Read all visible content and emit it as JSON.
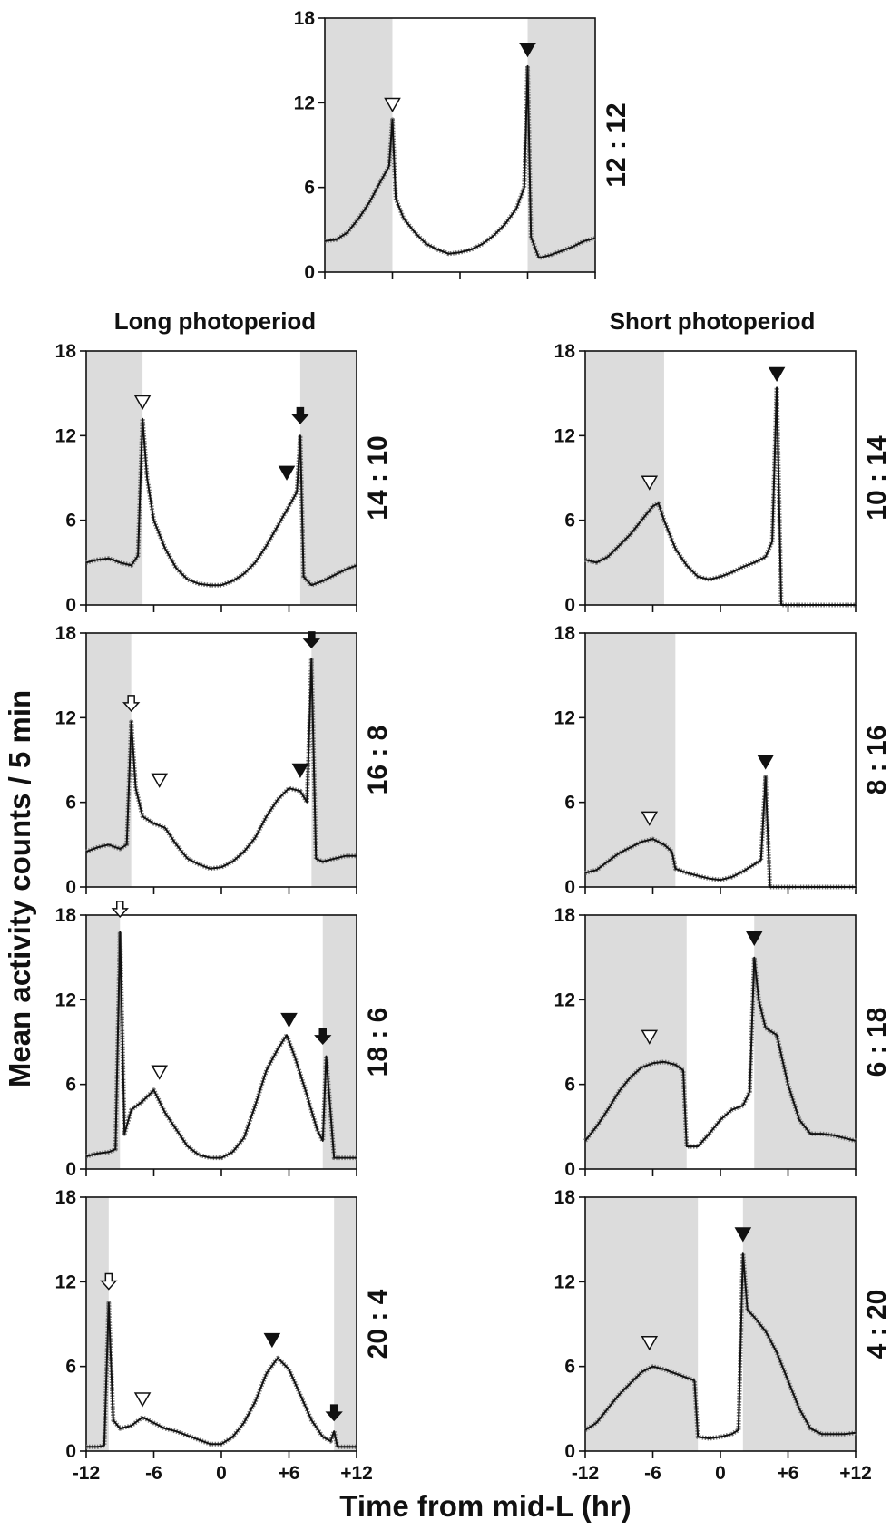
{
  "figure": {
    "long_header": "Long photoperiod",
    "short_header": "Short photoperiod",
    "ylabel": "Mean activity counts / 5 min",
    "xlabel": "Time from mid-L (hr)",
    "x_tick_labels": [
      "-12",
      "-6",
      "0",
      "+6",
      "+12"
    ],
    "y_tick_labels": [
      "0",
      "6",
      "12",
      "18"
    ]
  },
  "colors": {
    "dark_shading": "#dcdcdc",
    "trace": "#111111",
    "marker": "#111111"
  },
  "chart_data": [
    {
      "type": "line",
      "ratio_label": "12 : 12",
      "column": "center",
      "xlim": [
        -12,
        12
      ],
      "ylim": [
        0,
        18
      ],
      "x_ticks_labeled": false,
      "dark_intervals": [
        [
          -12,
          -6
        ],
        [
          6,
          12
        ]
      ],
      "series": [
        {
          "x": [
            -12,
            -11,
            -10,
            -9,
            -8,
            -7,
            -6.3,
            -6,
            -5.7,
            -5,
            -4,
            -3,
            -2,
            -1,
            0,
            1,
            2,
            3,
            4,
            5,
            5.7,
            6,
            6.3,
            7,
            8,
            9,
            10,
            11,
            12
          ],
          "values": [
            2.2,
            2.3,
            2.8,
            3.8,
            5,
            6.5,
            7.5,
            10.8,
            5.2,
            3.8,
            2.8,
            2,
            1.6,
            1.3,
            1.4,
            1.6,
            2,
            2.6,
            3.4,
            4.5,
            6,
            14.6,
            2.5,
            1,
            1.2,
            1.5,
            1.8,
            2.2,
            2.4
          ]
        }
      ],
      "markers": [
        {
          "type": "open-triangle",
          "x": -6,
          "y": 11.8
        },
        {
          "type": "filled-triangle",
          "x": 6,
          "y": 15.7
        }
      ]
    },
    {
      "type": "line",
      "ratio_label": "14 : 10",
      "column": "long",
      "xlim": [
        -12,
        12
      ],
      "ylim": [
        0,
        18
      ],
      "x_ticks_labeled": false,
      "dark_intervals": [
        [
          -12,
          -7
        ],
        [
          7,
          12
        ]
      ],
      "series": [
        {
          "x": [
            -12,
            -11,
            -10,
            -9,
            -8,
            -7.4,
            -7,
            -6.6,
            -6,
            -5,
            -4,
            -3,
            -2,
            -1,
            0,
            1,
            2,
            3,
            4,
            5,
            6,
            6.7,
            7,
            7.3,
            8,
            9,
            10,
            11,
            12
          ],
          "values": [
            3,
            3.2,
            3.3,
            3,
            2.8,
            3.5,
            13.2,
            9,
            6,
            4,
            2.6,
            1.8,
            1.5,
            1.4,
            1.4,
            1.7,
            2.2,
            3,
            4.2,
            5.6,
            7,
            8,
            12,
            2,
            1.4,
            1.7,
            2.1,
            2.5,
            2.8
          ]
        }
      ],
      "markers": [
        {
          "type": "open-triangle",
          "x": -7,
          "y": 14.3
        },
        {
          "type": "filled-triangle",
          "x": 5.8,
          "y": 9.3
        },
        {
          "type": "filled-arrow",
          "x": 7,
          "y": 13.2
        }
      ]
    },
    {
      "type": "line",
      "ratio_label": "16 : 8",
      "column": "long",
      "xlim": [
        -12,
        12
      ],
      "ylim": [
        0,
        18
      ],
      "x_ticks_labeled": false,
      "dark_intervals": [
        [
          -12,
          -8
        ],
        [
          8,
          12
        ]
      ],
      "series": [
        {
          "x": [
            -12,
            -11,
            -10,
            -9,
            -8.4,
            -8,
            -7.6,
            -7,
            -6,
            -5,
            -4,
            -3,
            -2,
            -1,
            0,
            1,
            2,
            3,
            4,
            5,
            6,
            7,
            7.6,
            8,
            8.4,
            9,
            10,
            11,
            12
          ],
          "values": [
            2.5,
            2.8,
            3,
            2.7,
            3,
            11.7,
            7,
            5,
            4.5,
            4.2,
            3,
            2,
            1.6,
            1.3,
            1.4,
            1.8,
            2.5,
            3.5,
            5,
            6.2,
            7,
            6.8,
            6,
            16.2,
            2,
            1.8,
            2,
            2.2,
            2.2
          ]
        }
      ],
      "markers": [
        {
          "type": "open-arrow",
          "x": -8,
          "y": 12.8
        },
        {
          "type": "open-triangle",
          "x": -5.5,
          "y": 7.5
        },
        {
          "type": "filled-triangle",
          "x": 7,
          "y": 8.2
        },
        {
          "type": "filled-arrow",
          "x": 8,
          "y": 17.3
        }
      ]
    },
    {
      "type": "line",
      "ratio_label": "18 : 6",
      "column": "long",
      "xlim": [
        -12,
        12
      ],
      "ylim": [
        0,
        18
      ],
      "x_ticks_labeled": false,
      "dark_intervals": [
        [
          -12,
          -9
        ],
        [
          9,
          12
        ]
      ],
      "series": [
        {
          "x": [
            -12,
            -11,
            -10,
            -9.4,
            -9,
            -8.6,
            -8,
            -7,
            -6,
            -5,
            -4,
            -3,
            -2,
            -1,
            0,
            1,
            2,
            3,
            4,
            5,
            5.8,
            6.5,
            7.5,
            8.5,
            9,
            9.3,
            10,
            11,
            12
          ],
          "values": [
            0.9,
            1.1,
            1.2,
            1.4,
            16.8,
            2.5,
            4.2,
            4.8,
            5.6,
            4,
            2.8,
            1.6,
            1,
            0.8,
            0.8,
            1.2,
            2.2,
            4.5,
            7,
            8.5,
            9.5,
            8,
            5.5,
            2.8,
            2,
            8,
            0.8,
            0.8,
            0.8
          ]
        }
      ],
      "markers": [
        {
          "type": "open-arrow",
          "x": -9,
          "y": 18.2
        },
        {
          "type": "open-triangle",
          "x": -5.5,
          "y": 6.8
        },
        {
          "type": "filled-triangle",
          "x": 6,
          "y": 10.5
        },
        {
          "type": "filled-arrow",
          "x": 9,
          "y": 9.2
        }
      ]
    },
    {
      "type": "line",
      "ratio_label": "20 : 4",
      "column": "long",
      "xlim": [
        -12,
        12
      ],
      "ylim": [
        0,
        18
      ],
      "x_ticks_labeled": true,
      "dark_intervals": [
        [
          -12,
          -10
        ],
        [
          10,
          12
        ]
      ],
      "series": [
        {
          "x": [
            -12,
            -11,
            -10.4,
            -10,
            -9.6,
            -9,
            -8,
            -7,
            -6,
            -5,
            -4,
            -3,
            -2,
            -1,
            0,
            1,
            2,
            3,
            4,
            5,
            6,
            7,
            8,
            9,
            9.7,
            10,
            10.3,
            11,
            12
          ],
          "values": [
            0.3,
            0.3,
            0.4,
            10.5,
            2.2,
            1.6,
            1.8,
            2.4,
            2,
            1.6,
            1.4,
            1.1,
            0.8,
            0.5,
            0.5,
            1,
            2,
            3.5,
            5.5,
            6.6,
            5.8,
            4,
            2.2,
            1,
            0.7,
            1.4,
            0.3,
            0.3,
            0.3
          ]
        }
      ],
      "markers": [
        {
          "type": "open-arrow",
          "x": -10,
          "y": 11.8
        },
        {
          "type": "open-triangle",
          "x": -7,
          "y": 3.6
        },
        {
          "type": "filled-triangle",
          "x": 4.5,
          "y": 7.8
        },
        {
          "type": "filled-arrow",
          "x": 10,
          "y": 2.5
        }
      ]
    },
    {
      "type": "line",
      "ratio_label": "10 : 14",
      "column": "short",
      "xlim": [
        -12,
        12
      ],
      "ylim": [
        0,
        18
      ],
      "x_ticks_labeled": false,
      "dark_intervals": [
        [
          -12,
          -5
        ]
      ],
      "series": [
        {
          "x": [
            -12,
            -11,
            -10,
            -9,
            -8,
            -7,
            -6,
            -5.5,
            -5,
            -4,
            -3,
            -2,
            -1,
            0,
            1,
            2,
            3,
            4,
            4.6,
            5,
            5.4,
            6,
            7,
            8,
            9,
            10,
            11,
            12
          ],
          "values": [
            3.2,
            3,
            3.4,
            4.2,
            5,
            6,
            7,
            7.2,
            6,
            4,
            2.8,
            2,
            1.8,
            2,
            2.3,
            2.7,
            3,
            3.4,
            4.5,
            15.4,
            0,
            0,
            0,
            0,
            0,
            0,
            0,
            0
          ]
        }
      ],
      "markers": [
        {
          "type": "open-triangle",
          "x": -6.3,
          "y": 8.6
        },
        {
          "type": "filled-triangle",
          "x": 5,
          "y": 16.3
        }
      ]
    },
    {
      "type": "line",
      "ratio_label": "8 : 16",
      "column": "short",
      "xlim": [
        -12,
        12
      ],
      "ylim": [
        0,
        18
      ],
      "x_ticks_labeled": false,
      "dark_intervals": [
        [
          -12,
          -4
        ]
      ],
      "series": [
        {
          "x": [
            -12,
            -11,
            -10,
            -9,
            -8,
            -7,
            -6,
            -5,
            -4.3,
            -4,
            -3,
            -2,
            -1,
            0,
            1,
            2,
            3,
            3.6,
            4,
            4.4,
            5,
            6,
            7,
            8,
            9,
            10,
            11,
            12
          ],
          "values": [
            1,
            1.2,
            1.8,
            2.4,
            2.8,
            3.2,
            3.4,
            3,
            2.5,
            1.3,
            1,
            0.8,
            0.6,
            0.5,
            0.7,
            1.1,
            1.6,
            1.9,
            7.8,
            0,
            0,
            0,
            0,
            0,
            0,
            0,
            0,
            0
          ]
        }
      ],
      "markers": [
        {
          "type": "open-triangle",
          "x": -6.3,
          "y": 4.8
        },
        {
          "type": "filled-triangle",
          "x": 4,
          "y": 8.8
        }
      ]
    },
    {
      "type": "line",
      "ratio_label": "6 : 18",
      "column": "short",
      "xlim": [
        -12,
        12
      ],
      "ylim": [
        0,
        18
      ],
      "x_ticks_labeled": false,
      "dark_intervals": [
        [
          -12,
          -3
        ],
        [
          3,
          12
        ]
      ],
      "series": [
        {
          "x": [
            -12,
            -11,
            -10,
            -9,
            -8,
            -7,
            -6,
            -5,
            -4,
            -3.3,
            -3,
            -2,
            -1,
            0,
            1,
            2,
            2.6,
            3,
            3.4,
            4,
            5,
            6,
            7,
            8,
            9,
            10,
            11,
            12
          ],
          "values": [
            2,
            3,
            4.2,
            5.5,
            6.5,
            7.2,
            7.5,
            7.6,
            7.4,
            7,
            1.6,
            1.6,
            2.5,
            3.5,
            4.2,
            4.5,
            5.5,
            15,
            12,
            10,
            9.5,
            6,
            3.5,
            2.5,
            2.5,
            2.4,
            2.2,
            2
          ]
        }
      ],
      "markers": [
        {
          "type": "open-triangle",
          "x": -6.3,
          "y": 9.3
        },
        {
          "type": "filled-triangle",
          "x": 3,
          "y": 16.3
        }
      ]
    },
    {
      "type": "line",
      "ratio_label": "4 : 20",
      "column": "short",
      "xlim": [
        -12,
        12
      ],
      "ylim": [
        0,
        18
      ],
      "x_ticks_labeled": true,
      "dark_intervals": [
        [
          -12,
          -2
        ],
        [
          2,
          12
        ]
      ],
      "series": [
        {
          "x": [
            -12,
            -11,
            -10,
            -9,
            -8,
            -7,
            -6,
            -5,
            -4,
            -3,
            -2.3,
            -2,
            -1,
            0,
            1,
            1.6,
            2,
            2.4,
            3,
            4,
            5,
            6,
            7,
            8,
            9,
            10,
            11,
            12
          ],
          "values": [
            1.5,
            2,
            3,
            4,
            4.8,
            5.6,
            6,
            5.8,
            5.5,
            5.2,
            5,
            1,
            0.9,
            1,
            1.2,
            1.5,
            14,
            10,
            9.5,
            8.5,
            7,
            5,
            3,
            1.6,
            1.2,
            1.2,
            1.2,
            1.3
          ]
        }
      ],
      "markers": [
        {
          "type": "open-triangle",
          "x": -6.3,
          "y": 7.6
        },
        {
          "type": "filled-triangle",
          "x": 2,
          "y": 15.3
        }
      ]
    }
  ]
}
